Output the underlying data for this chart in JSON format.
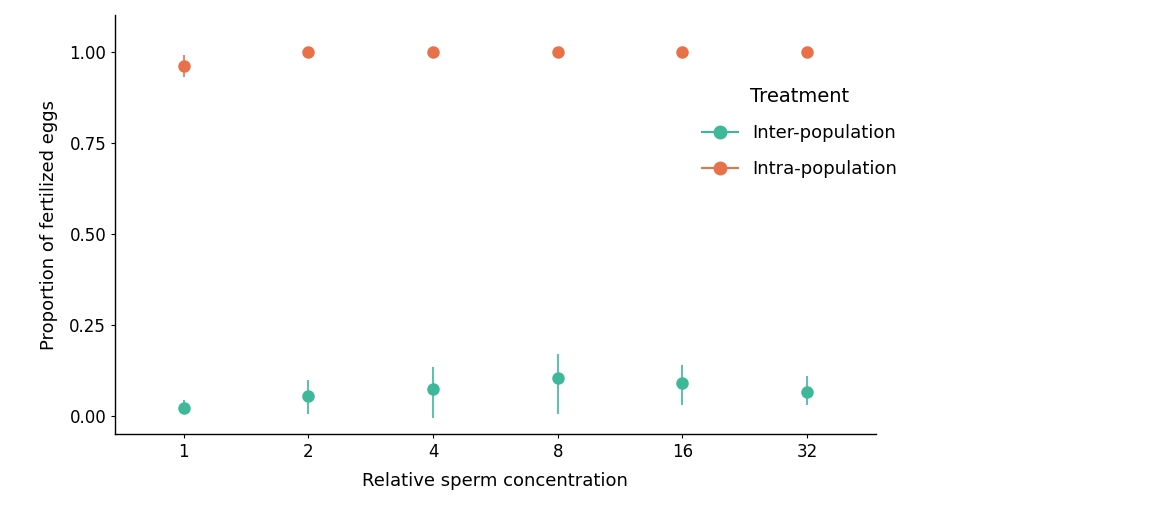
{
  "x_labels": [
    "1",
    "2",
    "4",
    "8",
    "16",
    "32"
  ],
  "inter_mean": [
    0.022,
    0.055,
    0.075,
    0.105,
    0.09,
    0.065
  ],
  "inter_ymin": [
    0.005,
    0.005,
    -0.005,
    0.005,
    0.03,
    0.03
  ],
  "inter_ymax": [
    0.045,
    0.1,
    0.135,
    0.17,
    0.14,
    0.11
  ],
  "intra_mean": [
    0.96,
    0.998,
    1.0,
    1.0,
    1.0,
    1.0
  ],
  "intra_ymin": [
    0.93,
    0.993,
    0.995,
    0.997,
    0.998,
    0.998
  ],
  "intra_ymax": [
    0.99,
    1.003,
    1.005,
    1.003,
    1.002,
    1.002
  ],
  "inter_color": "#3db899",
  "intra_color": "#e8714a",
  "xlabel": "Relative sperm concentration",
  "ylabel": "Proportion of fertilized eggs",
  "legend_title": "Treatment",
  "legend_inter": "Inter-population",
  "legend_intra": "Intra-population",
  "ylim": [
    -0.05,
    1.1
  ],
  "yticks": [
    0.0,
    0.25,
    0.5,
    0.75,
    1.0
  ],
  "ytick_labels": [
    "0.00",
    "0.25",
    "0.50",
    "0.75",
    "1.00"
  ],
  "background_color": "#ffffff",
  "marker_size": 9,
  "capsize": 3,
  "linewidth": 1.2,
  "axis_fontsize": 12,
  "label_fontsize": 13,
  "legend_fontsize": 13,
  "legend_title_fontsize": 14
}
